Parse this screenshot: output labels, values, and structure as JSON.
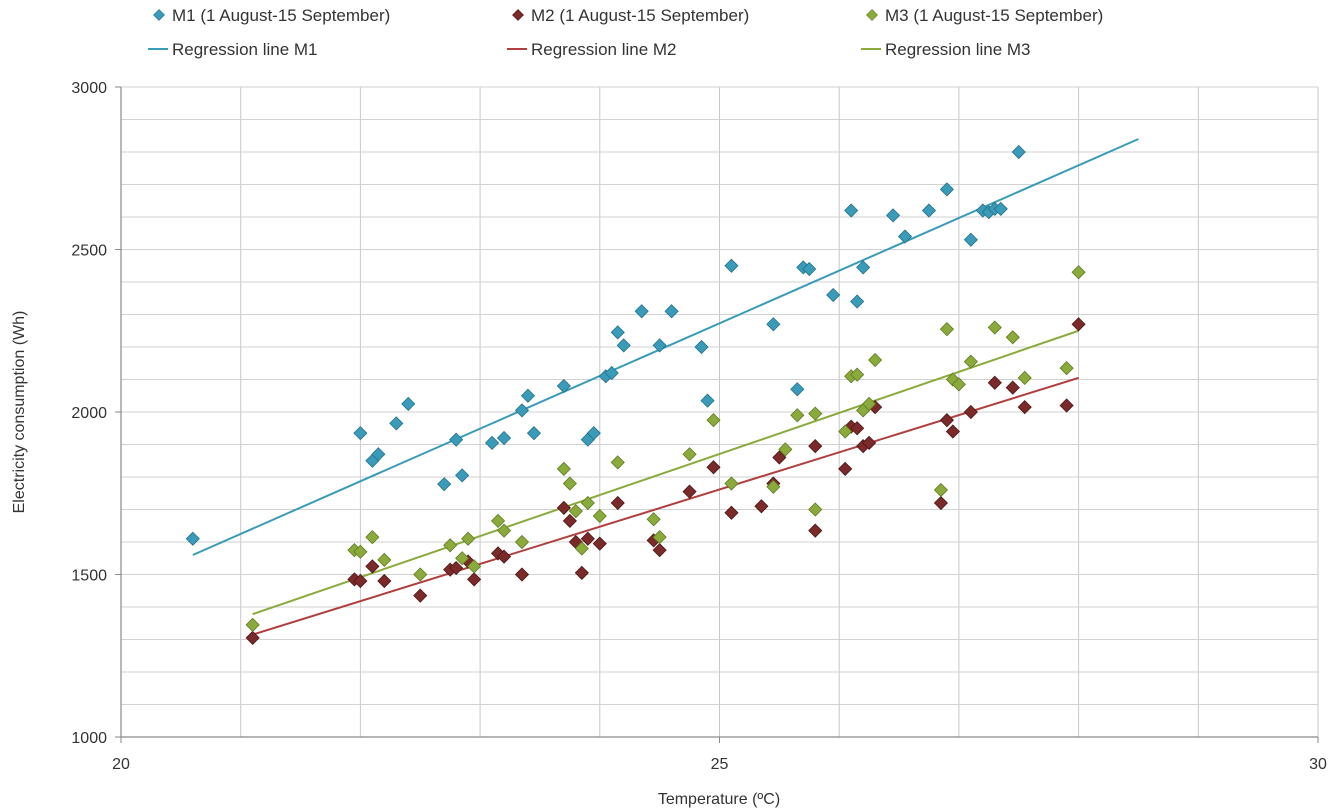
{
  "chart_data": {
    "type": "scatter",
    "xlabel": "Temperature (ºC)",
    "ylabel": "Electricity consumption (Wh)",
    "xlim": [
      20,
      30
    ],
    "ylim": [
      1000,
      3000
    ],
    "x_ticks": [
      20,
      25,
      30
    ],
    "y_ticks": [
      1000,
      1500,
      2000,
      2500,
      3000
    ],
    "x_tick_labels": [
      "20",
      "25",
      "30"
    ],
    "y_tick_labels": [
      "1000",
      "1500",
      "2000",
      "2500",
      "3000"
    ],
    "grid": true,
    "legend": "top",
    "series": [
      {
        "name": "M1 (1 August-15 September)",
        "color": "#3a9bb8",
        "marker": "diamond",
        "points": [
          [
            20.6,
            1610
          ],
          [
            22.0,
            1935
          ],
          [
            22.1,
            1850
          ],
          [
            22.15,
            1870
          ],
          [
            22.3,
            1965
          ],
          [
            22.4,
            2025
          ],
          [
            22.7,
            1778
          ],
          [
            22.8,
            1915
          ],
          [
            22.85,
            1805
          ],
          [
            23.1,
            1905
          ],
          [
            23.2,
            1920
          ],
          [
            23.35,
            2005
          ],
          [
            23.4,
            2050
          ],
          [
            23.45,
            1935
          ],
          [
            23.7,
            2080
          ],
          [
            23.9,
            1915
          ],
          [
            23.95,
            1935
          ],
          [
            24.05,
            2110
          ],
          [
            24.1,
            2120
          ],
          [
            24.15,
            2245
          ],
          [
            24.2,
            2205
          ],
          [
            24.35,
            2310
          ],
          [
            24.5,
            2205
          ],
          [
            24.6,
            2310
          ],
          [
            24.85,
            2200
          ],
          [
            24.9,
            2035
          ],
          [
            25.1,
            2450
          ],
          [
            25.45,
            2270
          ],
          [
            25.65,
            2070
          ],
          [
            25.7,
            2445
          ],
          [
            25.75,
            2440
          ],
          [
            25.95,
            2360
          ],
          [
            26.1,
            2620
          ],
          [
            26.15,
            2340
          ],
          [
            26.2,
            2445
          ],
          [
            26.45,
            2605
          ],
          [
            26.55,
            2540
          ],
          [
            26.75,
            2620
          ],
          [
            26.9,
            2685
          ],
          [
            27.1,
            2530
          ],
          [
            27.2,
            2620
          ],
          [
            27.25,
            2615
          ],
          [
            27.3,
            2625
          ],
          [
            27.35,
            2625
          ],
          [
            27.5,
            2800
          ]
        ]
      },
      {
        "name": "M2 (1 August-15 September)",
        "color": "#7b2a2a",
        "marker": "diamond",
        "points": [
          [
            21.1,
            1305
          ],
          [
            21.95,
            1485
          ],
          [
            22.0,
            1480
          ],
          [
            22.1,
            1525
          ],
          [
            22.2,
            1480
          ],
          [
            22.5,
            1435
          ],
          [
            22.75,
            1515
          ],
          [
            22.8,
            1520
          ],
          [
            22.9,
            1540
          ],
          [
            22.95,
            1485
          ],
          [
            23.15,
            1565
          ],
          [
            23.2,
            1555
          ],
          [
            23.35,
            1500
          ],
          [
            23.7,
            1705
          ],
          [
            23.75,
            1665
          ],
          [
            23.8,
            1600
          ],
          [
            23.85,
            1505
          ],
          [
            23.9,
            1610
          ],
          [
            24.0,
            1595
          ],
          [
            24.15,
            1720
          ],
          [
            24.45,
            1605
          ],
          [
            24.5,
            1575
          ],
          [
            24.75,
            1755
          ],
          [
            24.95,
            1830
          ],
          [
            25.1,
            1690
          ],
          [
            25.35,
            1710
          ],
          [
            25.45,
            1780
          ],
          [
            25.5,
            1860
          ],
          [
            25.8,
            1635
          ],
          [
            25.8,
            1895
          ],
          [
            26.05,
            1825
          ],
          [
            26.1,
            1955
          ],
          [
            26.15,
            1950
          ],
          [
            26.2,
            1895
          ],
          [
            26.25,
            1905
          ],
          [
            26.3,
            2015
          ],
          [
            26.85,
            1720
          ],
          [
            26.9,
            1975
          ],
          [
            26.95,
            1940
          ],
          [
            27.1,
            2000
          ],
          [
            27.3,
            2090
          ],
          [
            27.45,
            2075
          ],
          [
            27.55,
            2015
          ],
          [
            27.9,
            2020
          ],
          [
            28.0,
            2270
          ]
        ]
      },
      {
        "name": "M3 (1 August-15 September)",
        "color": "#8aab3c",
        "marker": "diamond",
        "points": [
          [
            21.1,
            1345
          ],
          [
            21.95,
            1575
          ],
          [
            22.0,
            1570
          ],
          [
            22.1,
            1615
          ],
          [
            22.2,
            1545
          ],
          [
            22.5,
            1500
          ],
          [
            22.75,
            1590
          ],
          [
            22.85,
            1550
          ],
          [
            22.9,
            1610
          ],
          [
            22.95,
            1525
          ],
          [
            23.15,
            1665
          ],
          [
            23.2,
            1635
          ],
          [
            23.35,
            1600
          ],
          [
            23.7,
            1825
          ],
          [
            23.75,
            1780
          ],
          [
            23.8,
            1695
          ],
          [
            23.85,
            1580
          ],
          [
            23.9,
            1720
          ],
          [
            24.0,
            1680
          ],
          [
            24.15,
            1845
          ],
          [
            24.45,
            1670
          ],
          [
            24.5,
            1615
          ],
          [
            24.75,
            1870
          ],
          [
            24.95,
            1975
          ],
          [
            25.1,
            1780
          ],
          [
            25.45,
            1770
          ],
          [
            25.55,
            1885
          ],
          [
            25.65,
            1990
          ],
          [
            25.8,
            1700
          ],
          [
            25.8,
            1995
          ],
          [
            26.05,
            1940
          ],
          [
            26.1,
            2110
          ],
          [
            26.15,
            2115
          ],
          [
            26.2,
            2005
          ],
          [
            26.25,
            2025
          ],
          [
            26.3,
            2160
          ],
          [
            26.85,
            1760
          ],
          [
            26.9,
            2255
          ],
          [
            26.95,
            2100
          ],
          [
            27.0,
            2085
          ],
          [
            27.1,
            2155
          ],
          [
            27.3,
            2260
          ],
          [
            27.45,
            2230
          ],
          [
            27.55,
            2105
          ],
          [
            27.9,
            2135
          ],
          [
            28.0,
            2430
          ]
        ]
      },
      {
        "name": "Regression line M1",
        "color": "#3a9bb8",
        "marker": "line",
        "points": [
          [
            20.6,
            1560
          ],
          [
            28.5,
            2840
          ]
        ]
      },
      {
        "name": "Regression line M2",
        "color": "#b04040",
        "marker": "line",
        "points": [
          [
            21.1,
            1315
          ],
          [
            28.0,
            2105
          ]
        ]
      },
      {
        "name": "Regression line M3",
        "color": "#8aab3c",
        "marker": "line",
        "points": [
          [
            21.1,
            1378
          ],
          [
            28.0,
            2250
          ]
        ]
      }
    ]
  }
}
